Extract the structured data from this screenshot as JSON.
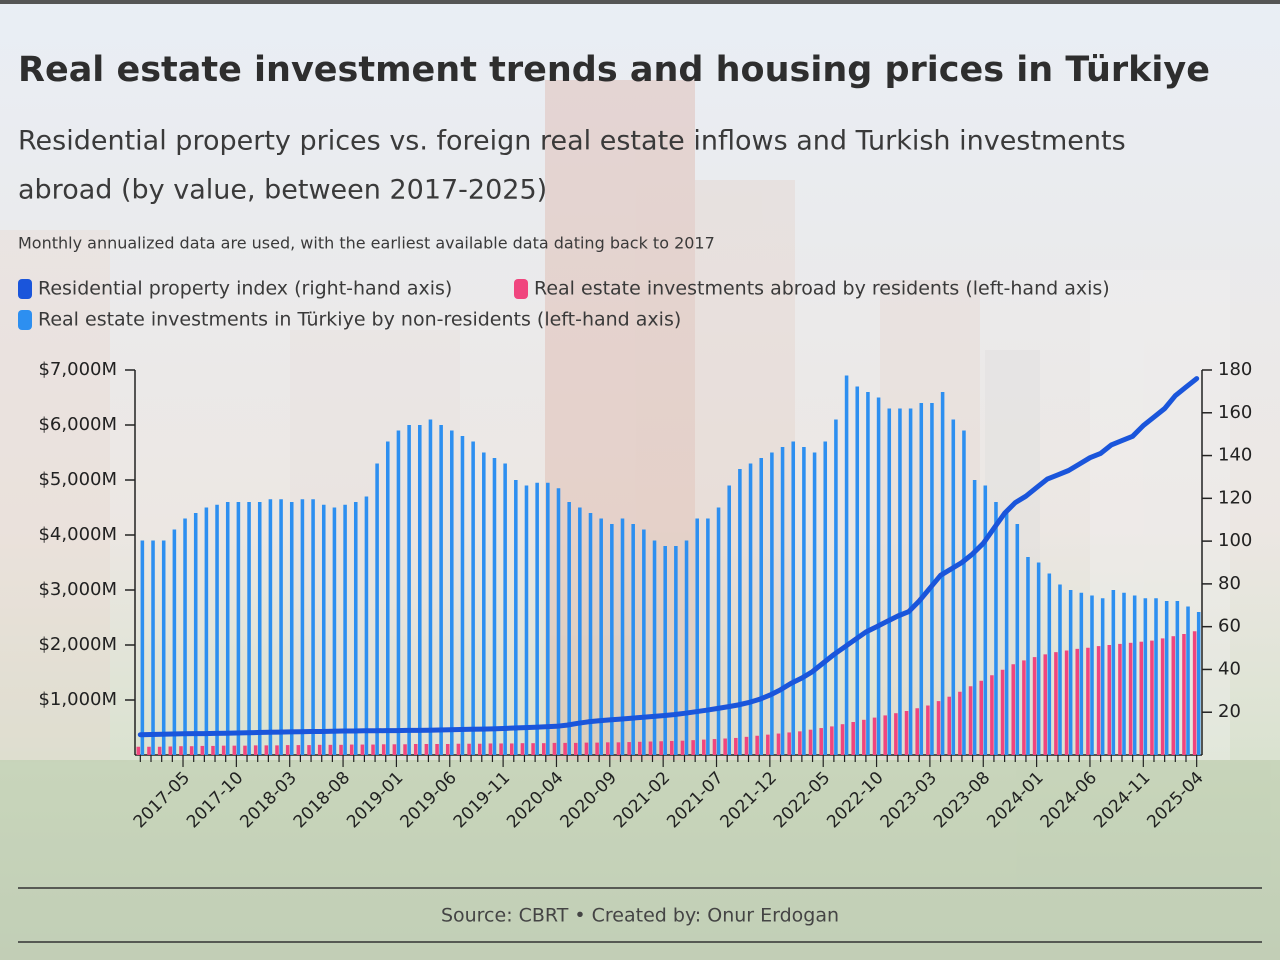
{
  "chart_data": {
    "type": "bar",
    "title": "Real estate investment trends and housing prices in Türkiye",
    "subtitle": [
      "Residential property prices vs. foreign real estate inflows and Turkish investments",
      "abroad (by value, between 2017-2025)"
    ],
    "note": "Monthly annualized data are used, with the earliest available data dating back to 2017",
    "source": "Source: CBRT • Created by: Onur Erdogan",
    "categories": [
      null,
      null,
      null,
      null,
      "2017-05",
      null,
      null,
      null,
      null,
      "2017-10",
      null,
      null,
      null,
      null,
      "2018-03",
      null,
      null,
      null,
      null,
      "2018-08",
      null,
      null,
      null,
      null,
      "2019-01",
      null,
      null,
      null,
      null,
      "2019-06",
      null,
      null,
      null,
      null,
      "2019-11",
      null,
      null,
      null,
      null,
      "2020-04",
      null,
      null,
      null,
      null,
      "2020-09",
      null,
      null,
      null,
      null,
      "2021-02",
      null,
      null,
      null,
      null,
      "2021-07",
      null,
      null,
      null,
      null,
      "2021-12",
      null,
      null,
      null,
      null,
      "2022-05",
      null,
      null,
      null,
      null,
      "2022-10",
      null,
      null,
      null,
      null,
      "2023-03",
      null,
      null,
      null,
      null,
      "2023-08",
      null,
      null,
      null,
      null,
      "2024-01",
      null,
      null,
      null,
      null,
      "2024-06",
      null,
      null,
      null,
      null,
      "2024-11",
      null,
      null,
      null,
      null,
      "2025-04"
    ],
    "series": [
      {
        "name": "Residential property index (right-hand axis)",
        "color": "#1a55db",
        "type": "line",
        "axis": "y2",
        "values": [
          9.5,
          9.6,
          9.7,
          9.8,
          9.9,
          10,
          10,
          10.1,
          10.2,
          10.3,
          10.4,
          10.5,
          10.6,
          10.7,
          10.8,
          10.9,
          11,
          11,
          11.1,
          11.2,
          11.2,
          11.3,
          11.3,
          11.4,
          11.4,
          11.5,
          11.5,
          11.6,
          11.7,
          11.8,
          11.9,
          12,
          12.1,
          12.2,
          12.4,
          12.6,
          12.8,
          13,
          13.2,
          13.4,
          14,
          14.8,
          15.5,
          16,
          16.4,
          16.8,
          17.2,
          17.6,
          18,
          18.4,
          18.9,
          19.5,
          20.2,
          20.9,
          21.7,
          22.5,
          23.4,
          24.5,
          26,
          28,
          30.5,
          33.5,
          36,
          39,
          43,
          47,
          50.5,
          54,
          57.5,
          60,
          62.5,
          65,
          67,
          72,
          78,
          84,
          87,
          90,
          94,
          99,
          106,
          113,
          118,
          121,
          125,
          129,
          131,
          133,
          136,
          139,
          141,
          145,
          147,
          149,
          154,
          158,
          162,
          168,
          172,
          176
        ]
      },
      {
        "name": "Real estate investments abroad by residents (left-hand axis)",
        "color": "#f0457e",
        "type": "bar",
        "values": [
          150,
          150,
          150,
          155,
          160,
          160,
          165,
          165,
          170,
          170,
          170,
          175,
          175,
          175,
          180,
          180,
          180,
          185,
          185,
          185,
          190,
          190,
          190,
          195,
          195,
          195,
          200,
          200,
          200,
          200,
          205,
          205,
          205,
          210,
          210,
          210,
          215,
          215,
          215,
          220,
          220,
          220,
          225,
          225,
          230,
          230,
          235,
          240,
          245,
          250,
          255,
          260,
          270,
          280,
          290,
          300,
          310,
          330,
          350,
          370,
          390,
          410,
          430,
          460,
          490,
          520,
          560,
          600,
          640,
          680,
          720,
          760,
          800,
          850,
          900,
          980,
          1060,
          1150,
          1250,
          1350,
          1450,
          1550,
          1650,
          1720,
          1780,
          1830,
          1870,
          1900,
          1930,
          1950,
          1980,
          2000,
          2020,
          2040,
          2060,
          2080,
          2120,
          2160,
          2200,
          2250
        ]
      },
      {
        "name": "Real estate investments in Türkiye by non-residents (left-hand axis)",
        "color": "#2d8ff0",
        "type": "bar",
        "values": [
          3900,
          3900,
          3900,
          4100,
          4300,
          4400,
          4500,
          4550,
          4600,
          4600,
          4600,
          4600,
          4650,
          4650,
          4600,
          4650,
          4650,
          4550,
          4500,
          4550,
          4600,
          4700,
          5300,
          5700,
          5900,
          6000,
          6000,
          6100,
          6000,
          5900,
          5800,
          5700,
          5500,
          5400,
          5300,
          5000,
          4900,
          4950,
          4950,
          4850,
          4600,
          4500,
          4400,
          4300,
          4200,
          4300,
          4200,
          4100,
          3900,
          3800,
          3800,
          3900,
          4300,
          4300,
          4500,
          4900,
          5200,
          5300,
          5400,
          5500,
          5600,
          5700,
          5600,
          5500,
          5700,
          6100,
          6900,
          6700,
          6600,
          6500,
          6300,
          6300,
          6300,
          6400,
          6400,
          6600,
          6100,
          5900,
          5000,
          4900,
          4600,
          4400,
          4200,
          3600,
          3500,
          3300,
          3100,
          3000,
          2950,
          2900,
          2850,
          3000,
          2950,
          2900,
          2850,
          2850,
          2800,
          2800,
          2700,
          2600
        ]
      }
    ],
    "ylim": [
      0,
      7000
    ],
    "yticks": [
      {
        "value": 1000,
        "label": "$1,000M"
      },
      {
        "value": 2000,
        "label": "$2,000M"
      },
      {
        "value": 3000,
        "label": "$3,000M"
      },
      {
        "value": 4000,
        "label": "$4,000M"
      },
      {
        "value": 5000,
        "label": "$5,000M"
      },
      {
        "value": 6000,
        "label": "$6,000M"
      },
      {
        "value": 7000,
        "label": "$7,000M"
      }
    ],
    "y2lim": [
      0,
      180
    ],
    "y2ticks": [
      20,
      40,
      60,
      80,
      100,
      120,
      140,
      160,
      180
    ]
  }
}
